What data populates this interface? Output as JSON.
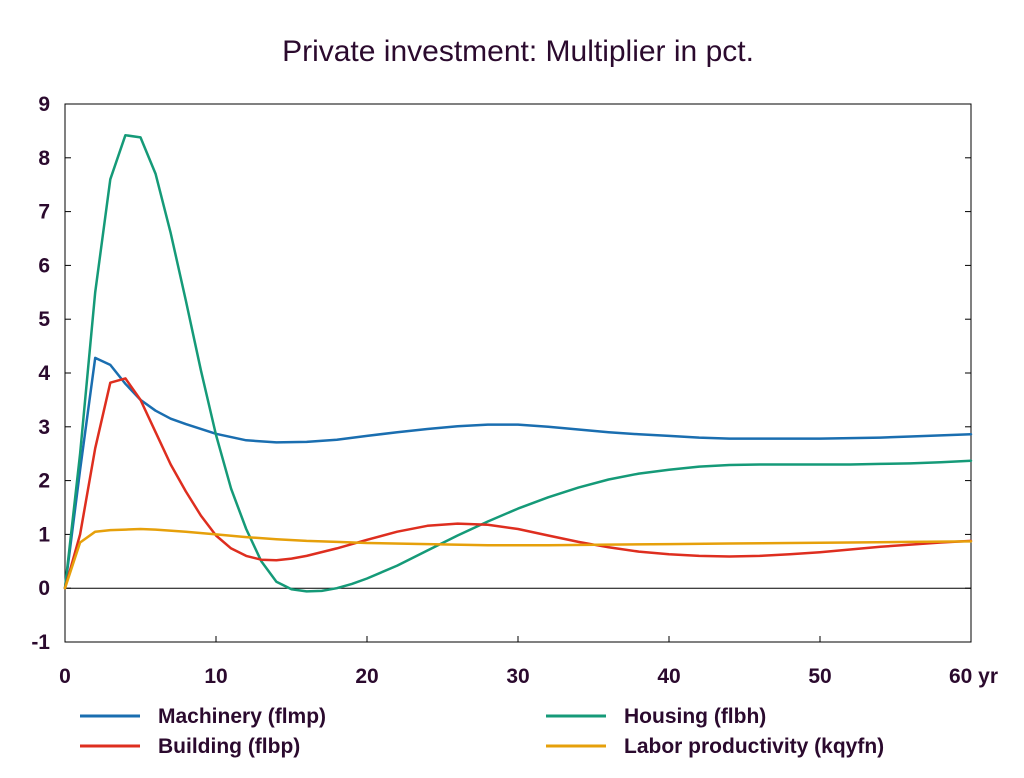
{
  "chart_data": {
    "type": "line",
    "title": "Private investment: Multiplier in pct.",
    "xlabel": "",
    "ylabel": "",
    "x_unit_label": "yr",
    "xlim": [
      0,
      60
    ],
    "ylim": [
      -1,
      9
    ],
    "x_ticks": [
      0,
      10,
      20,
      30,
      40,
      50,
      60
    ],
    "y_ticks": [
      -1,
      0,
      1,
      2,
      3,
      4,
      5,
      6,
      7,
      8,
      9
    ],
    "x_tick_labels": [
      "0",
      "10",
      "20",
      "30",
      "40",
      "50",
      "60 yr"
    ],
    "grid": false,
    "zero_line": true,
    "legend_position": "bottom",
    "series": [
      {
        "name": "Machinery (flmp)",
        "color": "#1a6eb0",
        "x": [
          0,
          1,
          2,
          3,
          4,
          5,
          6,
          7,
          8,
          10,
          12,
          14,
          16,
          18,
          20,
          22,
          24,
          26,
          28,
          30,
          32,
          34,
          36,
          38,
          40,
          42,
          44,
          46,
          48,
          50,
          52,
          54,
          56,
          58,
          60
        ],
        "values": [
          0,
          2.2,
          4.28,
          4.15,
          3.8,
          3.5,
          3.3,
          3.15,
          3.05,
          2.87,
          2.75,
          2.71,
          2.72,
          2.76,
          2.83,
          2.9,
          2.96,
          3.01,
          3.04,
          3.04,
          3.0,
          2.95,
          2.9,
          2.86,
          2.83,
          2.8,
          2.78,
          2.78,
          2.78,
          2.78,
          2.79,
          2.8,
          2.82,
          2.84,
          2.86
        ]
      },
      {
        "name": "Housing (flbh)",
        "color": "#159a78",
        "x": [
          0,
          1,
          2,
          3,
          4,
          5,
          6,
          7,
          8,
          9,
          10,
          11,
          12,
          13,
          14,
          15,
          16,
          17,
          18,
          19,
          20,
          22,
          24,
          26,
          28,
          30,
          32,
          34,
          36,
          38,
          40,
          42,
          44,
          46,
          48,
          50,
          52,
          54,
          56,
          58,
          60
        ],
        "values": [
          0,
          2.5,
          5.5,
          7.6,
          8.42,
          8.38,
          7.7,
          6.6,
          5.35,
          4.05,
          2.85,
          1.85,
          1.1,
          0.5,
          0.12,
          -0.02,
          -0.06,
          -0.05,
          0.0,
          0.08,
          0.18,
          0.42,
          0.7,
          0.98,
          1.24,
          1.48,
          1.69,
          1.87,
          2.02,
          2.13,
          2.2,
          2.26,
          2.29,
          2.3,
          2.3,
          2.3,
          2.3,
          2.31,
          2.32,
          2.34,
          2.37
        ]
      },
      {
        "name": "Building (flbp)",
        "color": "#de2e1f",
        "x": [
          0,
          1,
          2,
          3,
          4,
          5,
          6,
          7,
          8,
          9,
          10,
          11,
          12,
          13,
          14,
          15,
          16,
          18,
          20,
          22,
          24,
          26,
          28,
          30,
          32,
          34,
          36,
          38,
          40,
          42,
          44,
          46,
          48,
          50,
          52,
          54,
          56,
          58,
          60
        ],
        "values": [
          0,
          1.0,
          2.6,
          3.82,
          3.9,
          3.5,
          2.9,
          2.3,
          1.8,
          1.35,
          0.98,
          0.74,
          0.6,
          0.53,
          0.52,
          0.55,
          0.6,
          0.74,
          0.9,
          1.05,
          1.16,
          1.2,
          1.18,
          1.1,
          0.98,
          0.86,
          0.76,
          0.68,
          0.63,
          0.6,
          0.59,
          0.6,
          0.63,
          0.67,
          0.72,
          0.77,
          0.81,
          0.85,
          0.88
        ]
      },
      {
        "name": "Labor productivity (kqyfn)",
        "color": "#e6a00b",
        "x": [
          0,
          1,
          2,
          3,
          4,
          5,
          6,
          8,
          10,
          12,
          14,
          16,
          18,
          20,
          24,
          28,
          32,
          36,
          40,
          44,
          48,
          52,
          56,
          60
        ],
        "values": [
          0,
          0.85,
          1.05,
          1.08,
          1.09,
          1.1,
          1.09,
          1.05,
          1.0,
          0.95,
          0.91,
          0.88,
          0.86,
          0.84,
          0.82,
          0.8,
          0.8,
          0.81,
          0.82,
          0.83,
          0.84,
          0.85,
          0.86,
          0.87
        ]
      }
    ]
  }
}
